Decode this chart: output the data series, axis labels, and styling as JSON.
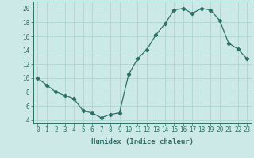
{
  "x": [
    0,
    1,
    2,
    3,
    4,
    5,
    6,
    7,
    8,
    9,
    10,
    11,
    12,
    13,
    14,
    15,
    16,
    17,
    18,
    19,
    20,
    21,
    22,
    23
  ],
  "y": [
    10,
    9,
    8,
    7.5,
    7,
    5.3,
    5,
    4.3,
    4.8,
    5,
    10.5,
    12.8,
    14.1,
    16.2,
    17.8,
    19.8,
    20,
    19.3,
    20,
    19.8,
    18.3,
    15,
    14.2,
    12.8
  ],
  "line_color": "#2d7068",
  "marker": "D",
  "marker_size": 2.2,
  "bg_color": "#cce9e7",
  "grid_color": "#a8d0ce",
  "axis_color": "#2d7068",
  "xlabel": "Humidex (Indice chaleur)",
  "xlim": [
    -0.5,
    23.5
  ],
  "ylim": [
    3.5,
    21
  ],
  "yticks": [
    4,
    6,
    8,
    10,
    12,
    14,
    16,
    18,
    20
  ],
  "xticks": [
    0,
    1,
    2,
    3,
    4,
    5,
    6,
    7,
    8,
    9,
    10,
    11,
    12,
    13,
    14,
    15,
    16,
    17,
    18,
    19,
    20,
    21,
    22,
    23
  ],
  "tick_fontsize": 5.5,
  "xlabel_fontsize": 6.5,
  "linewidth": 0.9
}
